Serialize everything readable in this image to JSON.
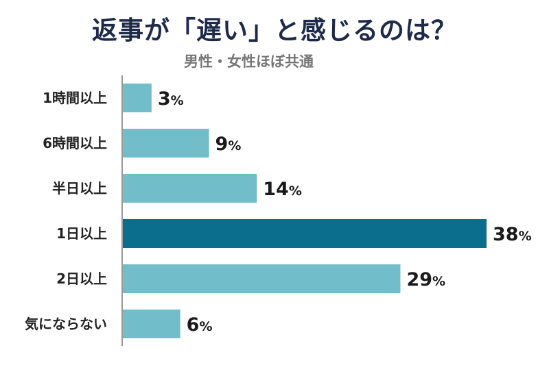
{
  "chart_data": {
    "type": "bar",
    "orientation": "horizontal",
    "title": "返事が「遅い」と感じるのは？",
    "subtitle": "男性・女性ほぼ共通",
    "categories": [
      "1時間以上",
      "6時間以上",
      "半日以上",
      "1日以上",
      "2日以上",
      "気にならない"
    ],
    "values": [
      3,
      9,
      14,
      38,
      29,
      6
    ],
    "unit": "%",
    "highlight_index": 3,
    "colors": {
      "bar": "#72bdca",
      "highlight": "#0a6e8c",
      "axis": "#999999"
    }
  }
}
